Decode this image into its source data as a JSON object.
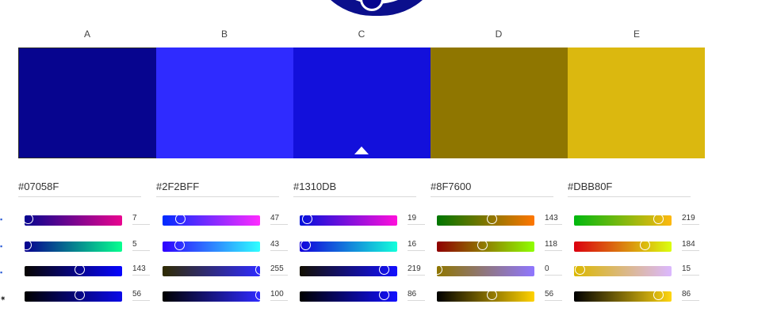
{
  "columns": [
    {
      "label": "A",
      "color": "#07058F",
      "hex": "#07058F",
      "sliders": [
        {
          "value": "7",
          "frac": 0.03,
          "gradient": "linear-gradient(90deg,#07058f,#e9058f)"
        },
        {
          "value": "5",
          "frac": 0.02,
          "gradient": "linear-gradient(90deg,#0700 8f,#07ff8f)"
        },
        {
          "value": "143",
          "frac": 0.56,
          "gradient": "linear-gradient(90deg,#070500,#0705ff)"
        },
        {
          "value": "56",
          "frac": 0.56,
          "gradient": "linear-gradient(90deg,#000000,#0b0ae8)"
        }
      ]
    },
    {
      "label": "B",
      "color": "#2F2BFF",
      "hex": "#2F2BFF",
      "sliders": [
        {
          "value": "47",
          "frac": 0.18,
          "gradient": "linear-gradient(90deg,#002bff,#ff2bff)"
        },
        {
          "value": "43",
          "frac": 0.17,
          "gradient": "linear-gradient(90deg,#2f00ff,#2fffff)"
        },
        {
          "value": "255",
          "frac": 1.0,
          "gradient": "linear-gradient(90deg,#2f2b00,#2f2bff)"
        },
        {
          "value": "100",
          "frac": 1.0,
          "gradient": "linear-gradient(90deg,#000000,#2f2bff)"
        }
      ]
    },
    {
      "label": "C",
      "color": "#1310DB",
      "hex": "#1310DB",
      "sliders": [
        {
          "value": "19",
          "frac": 0.07,
          "gradient": "linear-gradient(90deg,#0010db,#ff10db)"
        },
        {
          "value": "16",
          "frac": 0.06,
          "gradient": "linear-gradient(90deg,#1300db,#13ffdb)"
        },
        {
          "value": "219",
          "frac": 0.86,
          "gradient": "linear-gradient(90deg,#131000,#1310ff)"
        },
        {
          "value": "86",
          "frac": 0.86,
          "gradient": "linear-gradient(90deg,#000000,#1310ff)"
        }
      ]
    },
    {
      "label": "D",
      "color": "#8F7600",
      "hex": "#8F7600",
      "sliders": [
        {
          "value": "143",
          "frac": 0.56,
          "gradient": "linear-gradient(90deg,#007600,#ff7600)"
        },
        {
          "value": "118",
          "frac": 0.46,
          "gradient": "linear-gradient(90deg,#8f0000,#8fff00)"
        },
        {
          "value": "0",
          "frac": 0.0,
          "gradient": "linear-gradient(90deg,#8f7600,#8f76ff)"
        },
        {
          "value": "56",
          "frac": 0.56,
          "gradient": "linear-gradient(90deg,#000000,#ffd200)"
        }
      ]
    },
    {
      "label": "E",
      "color": "#DBB80F",
      "hex": "#DBB80F",
      "sliders": [
        {
          "value": "219",
          "frac": 0.86,
          "gradient": "linear-gradient(90deg,#00b80f,#ffb80f)"
        },
        {
          "value": "184",
          "frac": 0.72,
          "gradient": "linear-gradient(90deg,#db000f,#dbff0f)"
        },
        {
          "value": "15",
          "frac": 0.06,
          "gradient": "linear-gradient(90deg,#dbb800,#dbb8ff)"
        },
        {
          "value": "86",
          "frac": 0.86,
          "gradient": "linear-gradient(90deg,#000000,#ffd611)"
        }
      ]
    }
  ],
  "active_index": 2,
  "row_icons": [
    "r-channel-icon",
    "g-channel-icon",
    "b-channel-icon",
    "brightness-icon"
  ]
}
